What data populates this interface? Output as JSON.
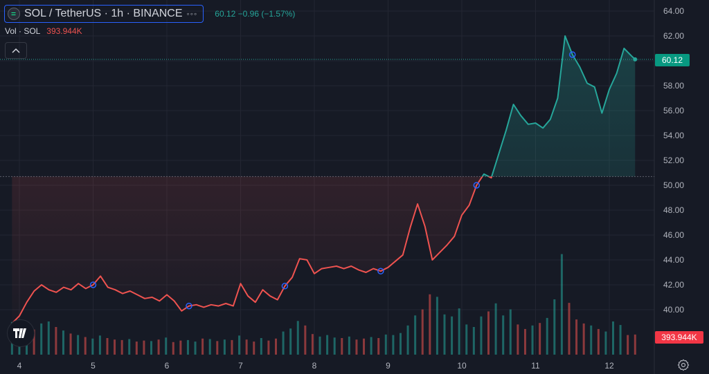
{
  "header": {
    "symbol_title": "SOL / TetherUS · 1h · BINANCE",
    "more_icon": "dots-icon",
    "ohlc_text": "60.12  −0.96 (−1.57%)"
  },
  "volume_legend": {
    "label": "Vol · SOL",
    "value": "393.944K"
  },
  "price_tags": {
    "current": "60.12",
    "volume": "393.944K"
  },
  "colors": {
    "background": "#161a25",
    "up_line": "#26a69a",
    "down_line": "#ef5350",
    "grid": "#232632",
    "axis_text": "#b2b5be",
    "volume_up": "#26a69a",
    "volume_down": "#ef5350",
    "marker": "#2962ff"
  },
  "chart_data": {
    "type": "line",
    "baseline": 50.7,
    "ylim": [
      38.0,
      64.0
    ],
    "y_ticks": [
      "40.00",
      "42.00",
      "44.00",
      "46.00",
      "48.00",
      "50.00",
      "52.00",
      "54.00",
      "56.00",
      "58.00",
      "60.00",
      "62.00",
      "64.00"
    ],
    "x_ticks": [
      "4",
      "5",
      "6",
      "7",
      "8",
      "9",
      "10",
      "11",
      "12"
    ],
    "x": [
      3.9,
      4.0,
      4.1,
      4.2,
      4.3,
      4.4,
      4.5,
      4.6,
      4.7,
      4.8,
      4.9,
      5.0,
      5.1,
      5.2,
      5.3,
      5.4,
      5.5,
      5.6,
      5.7,
      5.8,
      5.9,
      6.0,
      6.1,
      6.2,
      6.3,
      6.4,
      6.5,
      6.6,
      6.7,
      6.8,
      6.9,
      7.0,
      7.1,
      7.2,
      7.3,
      7.4,
      7.5,
      7.6,
      7.7,
      7.8,
      7.9,
      8.0,
      8.1,
      8.2,
      8.3,
      8.4,
      8.5,
      8.6,
      8.7,
      8.8,
      8.9,
      9.0,
      9.1,
      9.2,
      9.3,
      9.4,
      9.5,
      9.6,
      9.7,
      9.8,
      9.9,
      10.0,
      10.1,
      10.2,
      10.3,
      10.4,
      10.5,
      10.6,
      10.7,
      10.8,
      10.9,
      11.0,
      11.1,
      11.2,
      11.3,
      11.4,
      11.5,
      11.6,
      11.7,
      11.8,
      11.9,
      12.0,
      12.1,
      12.2,
      12.3,
      12.35
    ],
    "y": [
      38.9,
      39.5,
      40.6,
      41.5,
      42.0,
      41.6,
      41.4,
      41.8,
      41.6,
      42.1,
      41.7,
      42.0,
      42.7,
      41.8,
      41.6,
      41.3,
      41.5,
      41.2,
      40.9,
      41.0,
      40.7,
      41.2,
      40.7,
      39.9,
      40.3,
      40.4,
      40.2,
      40.4,
      40.3,
      40.5,
      40.3,
      42.1,
      41.1,
      40.6,
      41.6,
      41.1,
      40.8,
      41.9,
      42.6,
      44.1,
      44.0,
      42.9,
      43.3,
      43.4,
      43.5,
      43.3,
      43.5,
      43.2,
      43.0,
      43.3,
      43.1,
      43.4,
      43.9,
      44.4,
      46.6,
      48.5,
      46.7,
      44.0,
      44.6,
      45.2,
      45.9,
      47.6,
      48.4,
      50.0,
      50.9,
      50.6,
      52.5,
      54.4,
      56.5,
      55.6,
      54.9,
      55.0,
      54.6,
      55.3,
      57.0,
      62.0,
      60.5,
      59.5,
      58.2,
      57.9,
      55.8,
      57.7,
      59.0,
      61.0,
      60.4,
      60.12
    ],
    "markers_x": [
      5.0,
      6.3,
      7.6,
      8.9,
      10.2,
      11.5
    ],
    "volume": {
      "values": [
        6.5,
        7.0,
        6.0,
        5.0,
        6.2,
        6.6,
        5.5,
        4.8,
        4.2,
        3.9,
        3.5,
        3.2,
        3.8,
        3.3,
        3.0,
        2.9,
        3.1,
        2.6,
        2.8,
        2.7,
        3.0,
        3.4,
        2.5,
        2.8,
        2.9,
        2.6,
        3.2,
        3.1,
        2.7,
        3.0,
        2.9,
        3.8,
        3.0,
        2.6,
        3.3,
        2.8,
        3.2,
        4.6,
        5.2,
        6.7,
        5.8,
        4.1,
        3.6,
        3.9,
        3.4,
        3.3,
        3.6,
        3.0,
        3.2,
        3.5,
        3.3,
        4.0,
        3.9,
        4.3,
        5.8,
        7.8,
        9.0,
        12.0,
        11.5,
        8.0,
        7.6,
        9.2,
        6.0,
        5.5,
        7.6,
        8.6,
        10.2,
        7.8,
        9.0,
        6.0,
        5.1,
        5.8,
        6.3,
        7.3,
        11.0,
        20.0,
        10.3,
        7.0,
        6.2,
        5.8,
        5.1,
        4.6,
        6.6,
        5.9,
        3.9,
        4.0
      ],
      "up": [
        true,
        true,
        true,
        false,
        true,
        true,
        false,
        true,
        false,
        true,
        false,
        true,
        true,
        false,
        false,
        false,
        true,
        false,
        false,
        true,
        false,
        true,
        false,
        false,
        true,
        true,
        false,
        true,
        false,
        true,
        false,
        true,
        false,
        false,
        true,
        false,
        false,
        true,
        true,
        true,
        false,
        false,
        true,
        true,
        true,
        false,
        true,
        false,
        false,
        true,
        false,
        true,
        true,
        true,
        true,
        true,
        false,
        false,
        true,
        true,
        true,
        true,
        true,
        true,
        true,
        false,
        true,
        true,
        true,
        false,
        false,
        true,
        false,
        true,
        true,
        true,
        false,
        false,
        false,
        true,
        false,
        true,
        true,
        true,
        false,
        false
      ],
      "ymax": 22
    }
  }
}
